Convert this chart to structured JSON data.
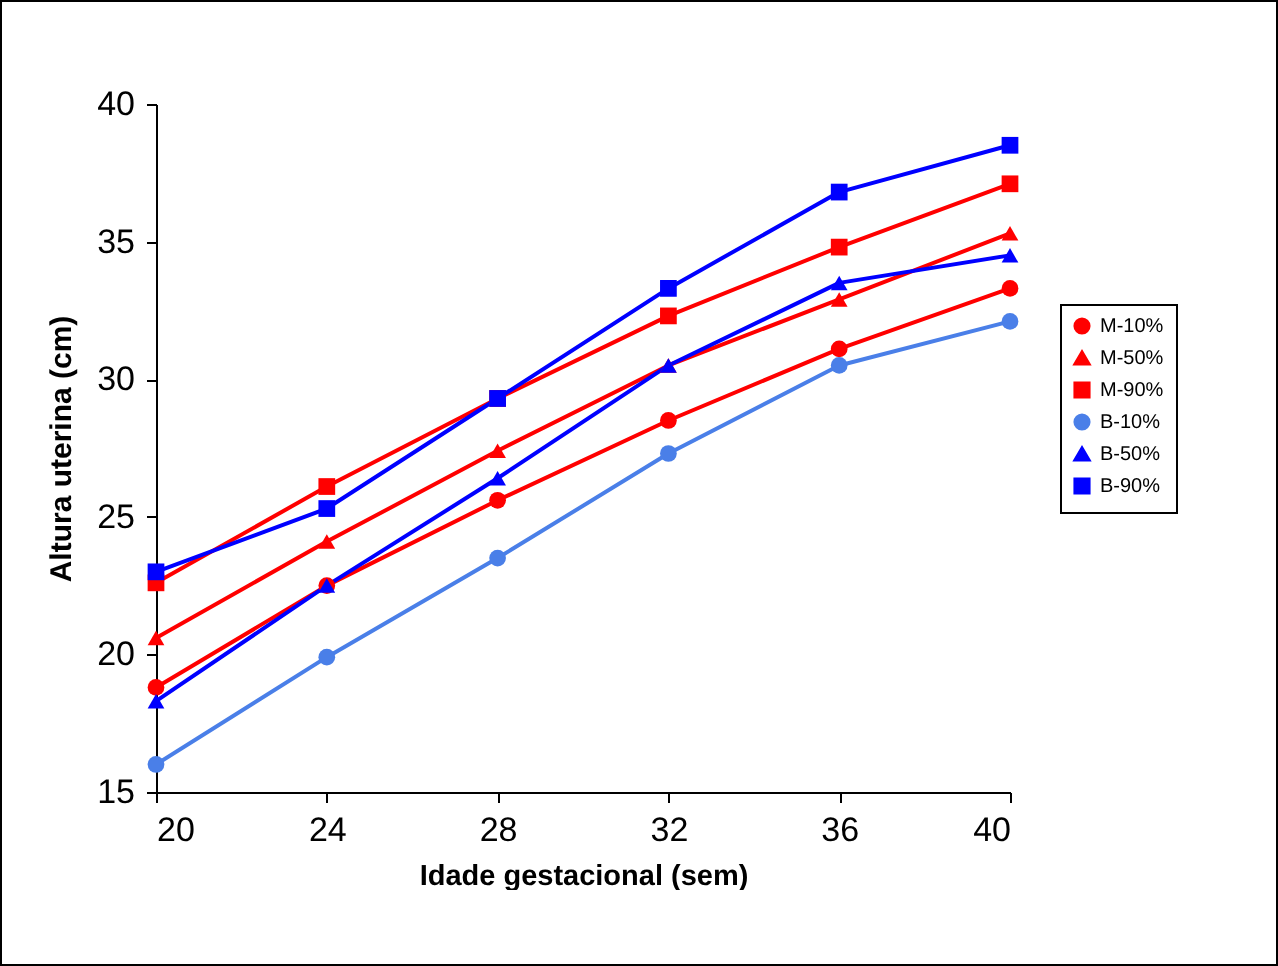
{
  "chart_data": {
    "type": "line",
    "xlabel": "Idade gestacional (sem)",
    "ylabel": "Altura uterina (cm)",
    "x": [
      20,
      24,
      28,
      32,
      36,
      40
    ],
    "xlim": [
      20,
      40
    ],
    "xticks": [
      20,
      24,
      28,
      32,
      36,
      40
    ],
    "ylim": [
      15,
      40
    ],
    "yticks": [
      15,
      20,
      25,
      30,
      35,
      40
    ],
    "grid": false,
    "legend": "right",
    "line_style": "solid",
    "series": [
      {
        "name": "M-10%",
        "color": "#ff0000",
        "marker": "circle",
        "values": [
          18.8,
          22.5,
          25.6,
          28.5,
          31.1,
          33.3
        ]
      },
      {
        "name": "M-50%",
        "color": "#ff0000",
        "marker": "triangle",
        "values": [
          20.6,
          24.1,
          27.4,
          30.5,
          32.9,
          35.3
        ]
      },
      {
        "name": "M-90%",
        "color": "#ff0000",
        "marker": "square",
        "values": [
          22.6,
          26.1,
          29.3,
          32.3,
          34.8,
          37.1
        ]
      },
      {
        "name": "B-10%",
        "color": "#4a7fe8",
        "marker": "circle",
        "values": [
          16.0,
          19.9,
          23.5,
          27.3,
          30.5,
          32.1
        ]
      },
      {
        "name": "B-50%",
        "color": "#0000ff",
        "marker": "triangle",
        "values": [
          18.3,
          22.5,
          26.4,
          30.5,
          33.5,
          34.5
        ]
      },
      {
        "name": "B-90%",
        "color": "#0000ff",
        "marker": "square",
        "values": [
          23.0,
          25.3,
          29.3,
          33.3,
          36.8,
          38.5
        ]
      }
    ]
  }
}
